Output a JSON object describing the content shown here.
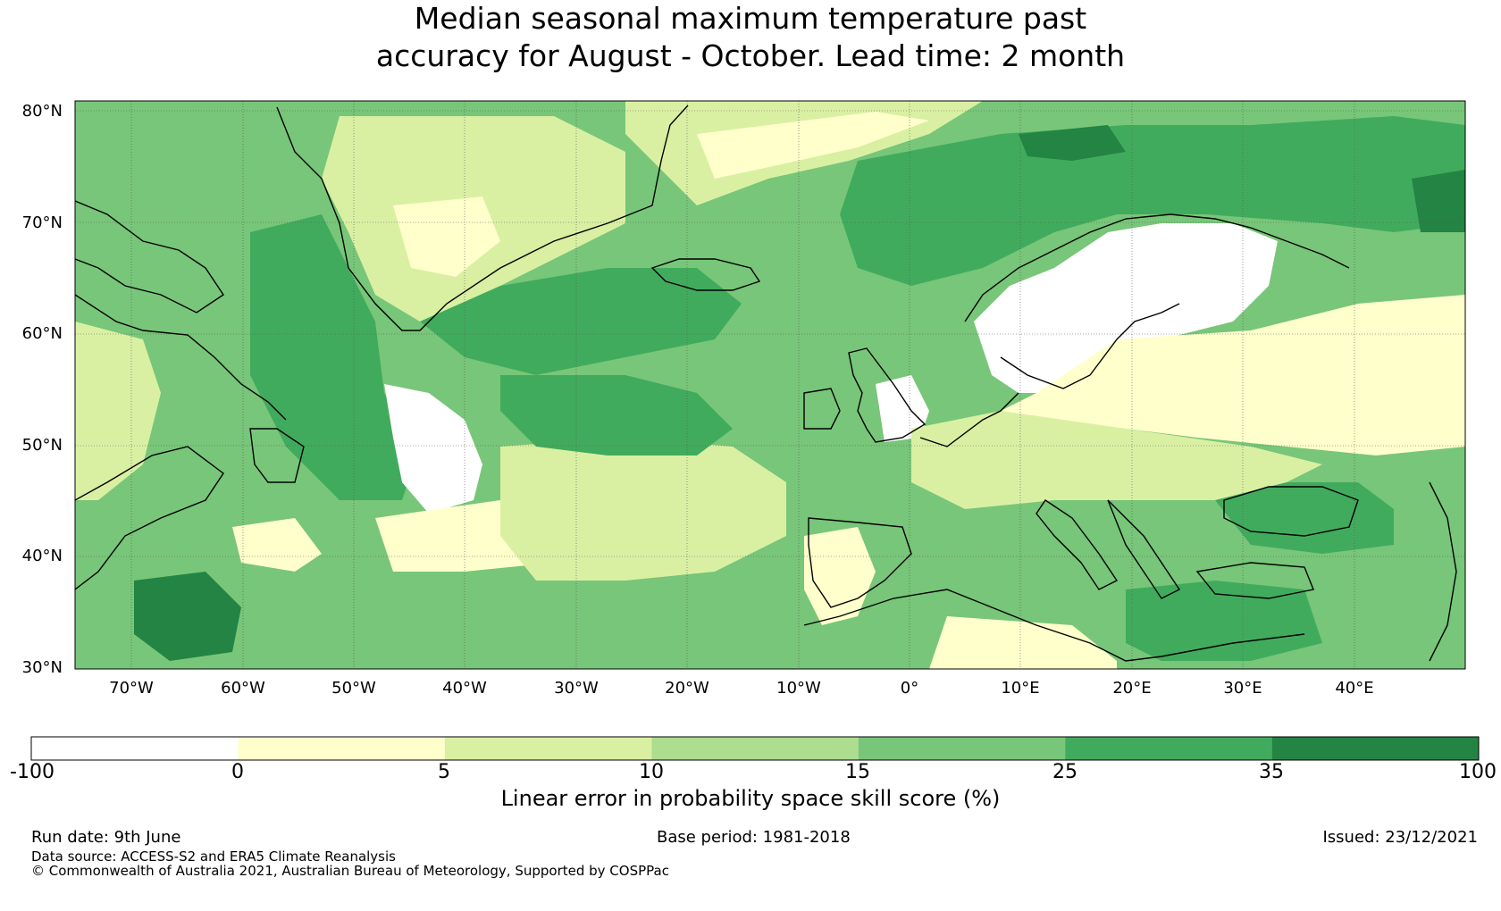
{
  "title_line1": "Median seasonal maximum temperature past",
  "title_line2": "accuracy for August - October. Lead time: 2 month",
  "map": {
    "lat_labels": [
      "80°N",
      "70°N",
      "60°N",
      "50°N",
      "40°N",
      "30°N"
    ],
    "lon_labels": [
      "70°W",
      "60°W",
      "50°W",
      "40°W",
      "30°W",
      "20°W",
      "10°W",
      "0°",
      "10°E",
      "20°E",
      "30°E",
      "40°E"
    ],
    "lat_range": [
      30,
      81
    ],
    "lon_range": [
      -75,
      50
    ]
  },
  "colorbar": {
    "ticks": [
      "-100",
      "0",
      "5",
      "10",
      "15",
      "25",
      "35",
      "100"
    ],
    "colors": [
      "#ffffff",
      "#ffffcc",
      "#d9f0a3",
      "#addd8e",
      "#78c679",
      "#41ab5d",
      "#238443"
    ],
    "label": "Linear error in probability space skill score (%)"
  },
  "footer": {
    "run_date": "Run date: 9th June",
    "base_period": "Base period: 1981-2018",
    "issued": "Issued: 23/12/2021",
    "data_source": "Data source: ACCESS-S2 and ERA5 Climate Reanalysis",
    "copyright": "© Commonwealth of Australia 2021, Australian Bureau of Meteorology, Supported by COSPPac"
  }
}
